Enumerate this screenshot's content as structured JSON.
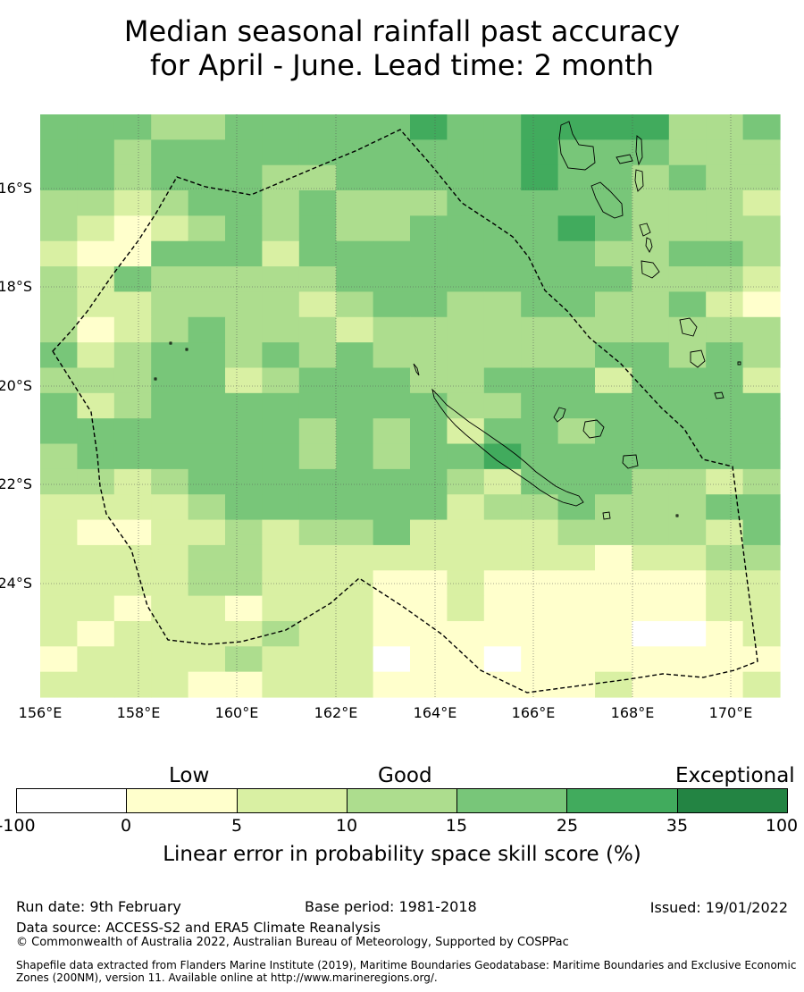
{
  "title": {
    "line1": "Median seasonal rainfall past accuracy",
    "line2": "for April - June. Lead time: 2 month"
  },
  "map": {
    "lat_labels": [
      "16°S",
      "18°S",
      "20°S",
      "22°S",
      "24°S"
    ],
    "lon_labels": [
      "156°E",
      "158°E",
      "160°E",
      "162°E",
      "164°E",
      "166°E",
      "168°E",
      "170°E"
    ],
    "grid_classes": [
      [
        4,
        4,
        4,
        3,
        3,
        4,
        4,
        4,
        4,
        4,
        5,
        4,
        4,
        5,
        5,
        5,
        5,
        3,
        3,
        4
      ],
      [
        4,
        4,
        3,
        4,
        4,
        4,
        4,
        4,
        4,
        4,
        4,
        4,
        4,
        5,
        4,
        4,
        4,
        3,
        3,
        3
      ],
      [
        4,
        4,
        3,
        4,
        4,
        4,
        3,
        3,
        4,
        4,
        4,
        4,
        4,
        5,
        4,
        4,
        3,
        4,
        3,
        3
      ],
      [
        3,
        3,
        2,
        3,
        4,
        4,
        3,
        4,
        3,
        3,
        3,
        4,
        4,
        4,
        4,
        4,
        3,
        3,
        3,
        2
      ],
      [
        3,
        2,
        1,
        2,
        3,
        4,
        3,
        4,
        3,
        3,
        4,
        4,
        4,
        4,
        5,
        4,
        3,
        3,
        3,
        3
      ],
      [
        2,
        1,
        1,
        4,
        4,
        4,
        2,
        4,
        4,
        4,
        4,
        4,
        4,
        4,
        4,
        3,
        3,
        4,
        4,
        3
      ],
      [
        3,
        2,
        4,
        3,
        3,
        3,
        3,
        3,
        4,
        4,
        4,
        4,
        4,
        4,
        4,
        4,
        3,
        3,
        3,
        2
      ],
      [
        3,
        2,
        2,
        3,
        3,
        3,
        3,
        2,
        3,
        4,
        4,
        3,
        3,
        4,
        4,
        3,
        3,
        4,
        2,
        1
      ],
      [
        3,
        1,
        2,
        3,
        4,
        3,
        3,
        3,
        2,
        3,
        3,
        3,
        3,
        3,
        3,
        3,
        3,
        3,
        3,
        3
      ],
      [
        4,
        2,
        3,
        4,
        4,
        3,
        4,
        3,
        4,
        3,
        3,
        3,
        3,
        3,
        3,
        4,
        4,
        3,
        4,
        3
      ],
      [
        3,
        3,
        3,
        4,
        4,
        2,
        3,
        4,
        4,
        4,
        3,
        3,
        4,
        4,
        4,
        2,
        4,
        4,
        4,
        2
      ],
      [
        4,
        2,
        3,
        4,
        4,
        4,
        4,
        4,
        4,
        4,
        4,
        3,
        3,
        4,
        4,
        4,
        4,
        4,
        4,
        4
      ],
      [
        4,
        4,
        4,
        4,
        4,
        4,
        4,
        3,
        4,
        3,
        4,
        2,
        4,
        4,
        3,
        4,
        4,
        4,
        4,
        4
      ],
      [
        3,
        4,
        4,
        4,
        4,
        4,
        4,
        3,
        4,
        3,
        4,
        4,
        5,
        4,
        4,
        4,
        4,
        4,
        4,
        4
      ],
      [
        3,
        3,
        2,
        3,
        4,
        4,
        4,
        4,
        4,
        4,
        4,
        3,
        2,
        4,
        4,
        4,
        3,
        3,
        2,
        3
      ],
      [
        2,
        2,
        2,
        2,
        3,
        4,
        4,
        4,
        4,
        4,
        4,
        2,
        3,
        3,
        4,
        3,
        3,
        3,
        4,
        4
      ],
      [
        2,
        1,
        1,
        2,
        2,
        3,
        2,
        3,
        3,
        4,
        2,
        2,
        2,
        2,
        3,
        3,
        3,
        3,
        2,
        4
      ],
      [
        2,
        2,
        2,
        2,
        3,
        3,
        2,
        2,
        2,
        2,
        2,
        2,
        2,
        2,
        2,
        1,
        2,
        2,
        3,
        3
      ],
      [
        2,
        2,
        2,
        2,
        3,
        3,
        2,
        2,
        2,
        1,
        1,
        2,
        1,
        1,
        1,
        1,
        1,
        1,
        2,
        2
      ],
      [
        2,
        2,
        1,
        2,
        2,
        1,
        2,
        2,
        2,
        1,
        1,
        2,
        1,
        1,
        1,
        1,
        1,
        1,
        2,
        2
      ],
      [
        2,
        1,
        2,
        2,
        2,
        2,
        3,
        2,
        2,
        1,
        1,
        1,
        1,
        1,
        1,
        1,
        0,
        0,
        1,
        2
      ],
      [
        1,
        2,
        2,
        2,
        2,
        3,
        2,
        2,
        2,
        0,
        1,
        1,
        0,
        1,
        1,
        1,
        1,
        1,
        1,
        1
      ],
      [
        2,
        2,
        2,
        2,
        1,
        1,
        2,
        2,
        2,
        1,
        1,
        1,
        1,
        1,
        1,
        2,
        1,
        1,
        1,
        2
      ]
    ]
  },
  "legend": {
    "categories": [
      "Low",
      "Good",
      "Exceptional"
    ],
    "colors": [
      "#ffffff",
      "#ffffcc",
      "#d9f0a3",
      "#addd8e",
      "#78c679",
      "#41ab5d",
      "#238443"
    ],
    "ticks": [
      "-100",
      "0",
      "5",
      "10",
      "15",
      "25",
      "35",
      "100"
    ],
    "title": "Linear error in probability space skill score (%)"
  },
  "footer": {
    "run_date": "Run date: 9th February",
    "base_period": "Base period: 1981-2018",
    "issued": "Issued: 19/01/2022",
    "data_source": "Data source: ACCESS-S2 and ERA5 Climate Reanalysis",
    "copyright": "© Commonwealth of Australia 2022, Australian Bureau of Meteorology, Supported by COSPPac",
    "shapefile": "Shapefile data extracted from Flanders Marine Institute (2019), Maritime Boundaries Geodatabase: Maritime Boundaries and Exclusive Economic Zones (200NM), version 11. Available online at http://www.marineregions.org/."
  }
}
